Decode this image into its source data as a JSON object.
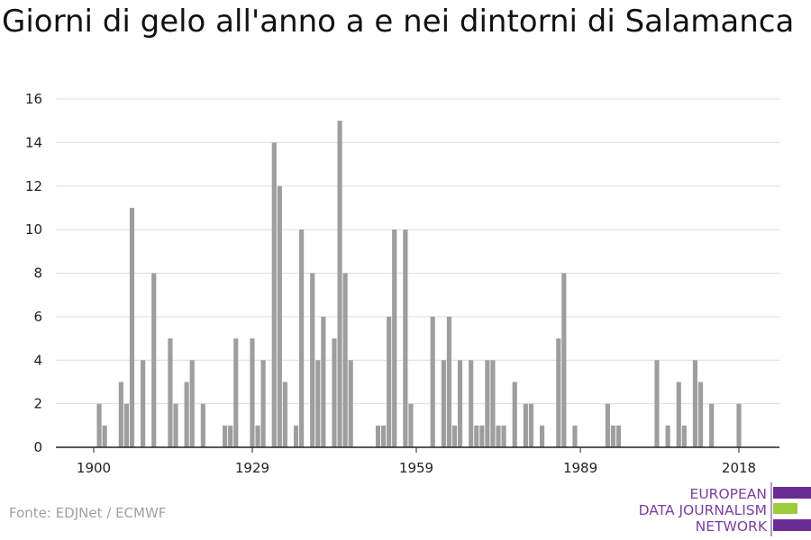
{
  "title": "Giorni di gelo all'anno a e nei dintorni di Salamanca",
  "source": "Fonte: EDJNet / ECMWF",
  "logo": {
    "line1": "EUROPEAN",
    "line2": "DATA JOURNALISM",
    "line3": "NETWORK"
  },
  "colors": {
    "bar": "#9e9e9e",
    "grid": "#dddddd",
    "axis": "#222222",
    "logo_purple": "#6a2c91",
    "logo_green": "#9ccc3c"
  },
  "chart_data": {
    "type": "bar",
    "title": "Giorni di gelo all'anno a e nei dintorni di Salamanca",
    "xlabel": "",
    "ylabel": "",
    "ylim": [
      0,
      16
    ],
    "xlim": [
      1900,
      2018
    ],
    "grid": true,
    "y_ticks": [
      0,
      2,
      4,
      6,
      8,
      10,
      12,
      14,
      16
    ],
    "x_ticks": [
      1900,
      1929,
      1959,
      1989,
      2018
    ],
    "x": [
      1900,
      1901,
      1902,
      1903,
      1904,
      1905,
      1906,
      1907,
      1908,
      1909,
      1910,
      1911,
      1912,
      1913,
      1914,
      1915,
      1916,
      1917,
      1918,
      1919,
      1920,
      1921,
      1922,
      1923,
      1924,
      1925,
      1926,
      1927,
      1928,
      1929,
      1930,
      1931,
      1932,
      1933,
      1934,
      1935,
      1936,
      1937,
      1938,
      1939,
      1940,
      1941,
      1942,
      1943,
      1944,
      1945,
      1946,
      1947,
      1948,
      1949,
      1950,
      1951,
      1952,
      1953,
      1954,
      1955,
      1956,
      1957,
      1958,
      1959,
      1960,
      1961,
      1962,
      1963,
      1964,
      1965,
      1966,
      1967,
      1968,
      1969,
      1970,
      1971,
      1972,
      1973,
      1974,
      1975,
      1976,
      1977,
      1978,
      1979,
      1980,
      1981,
      1982,
      1983,
      1984,
      1985,
      1986,
      1987,
      1988,
      1989,
      1990,
      1991,
      1992,
      1993,
      1994,
      1995,
      1996,
      1997,
      1998,
      1999,
      2000,
      2001,
      2002,
      2003,
      2004,
      2005,
      2006,
      2007,
      2008,
      2009,
      2010,
      2011,
      2012,
      2013,
      2014,
      2015,
      2016,
      2017,
      2018
    ],
    "values": [
      0,
      2,
      1,
      0,
      0,
      3,
      2,
      11,
      0,
      4,
      0,
      8,
      0,
      0,
      5,
      2,
      0,
      3,
      4,
      0,
      2,
      0,
      0,
      0,
      1,
      1,
      5,
      0,
      0,
      5,
      1,
      4,
      0,
      14,
      12,
      3,
      0,
      1,
      10,
      0,
      8,
      4,
      6,
      0,
      5,
      15,
      8,
      4,
      0,
      0,
      0,
      0,
      1,
      1,
      6,
      10,
      0,
      10,
      2,
      0,
      0,
      0,
      6,
      0,
      4,
      6,
      1,
      4,
      0,
      4,
      1,
      1,
      4,
      4,
      1,
      1,
      0,
      3,
      0,
      2,
      2,
      0,
      1,
      0,
      0,
      5,
      8,
      0,
      1,
      0,
      0,
      0,
      0,
      0,
      2,
      1,
      1,
      0,
      0,
      0,
      0,
      0,
      0,
      4,
      0,
      1,
      0,
      3,
      1,
      0,
      4,
      3,
      0,
      2,
      0,
      0,
      0,
      0,
      2
    ]
  }
}
